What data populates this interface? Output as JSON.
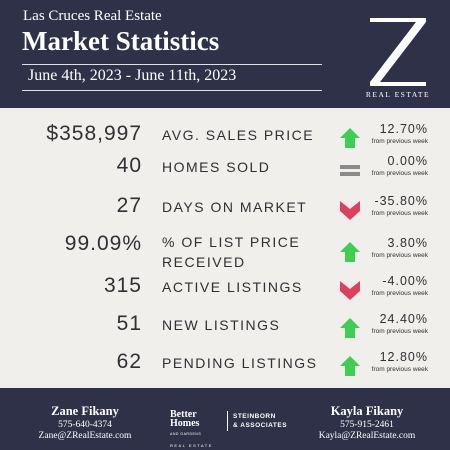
{
  "header": {
    "subtitle": "Las Cruces Real Estate",
    "title": "Market Statistics",
    "date_range": "June 4th, 2023 - June 11th, 2023",
    "logo_letter": "Z",
    "logo_text": "REAL ESTATE"
  },
  "stats": [
    {
      "value": "$358,997",
      "label_line1": "AVG. SALES PRICE",
      "label_line2": "",
      "trend": "up",
      "change": "12.70%",
      "note": "from previous week"
    },
    {
      "value": "40",
      "label_line1": "HOMES SOLD",
      "label_line2": "",
      "trend": "flat",
      "change": "0.00%",
      "note": "from previous week"
    },
    {
      "value": "27",
      "label_line1": "DAYS ON MARKET",
      "label_line2": "",
      "trend": "down",
      "change": "-35.80%",
      "note": "from previous week"
    },
    {
      "value": "99.09%",
      "label_line1": "% OF LIST PRICE",
      "label_line2": "RECEIVED",
      "trend": "up",
      "change": "3.80%",
      "note": "from previous week"
    },
    {
      "value": "315",
      "label_line1": "ACTIVE LISTINGS",
      "label_line2": "",
      "trend": "down",
      "change": "-4.00%",
      "note": "from previous week"
    },
    {
      "value": "51",
      "label_line1": "NEW LISTINGS",
      "label_line2": "",
      "trend": "up",
      "change": "24.40%",
      "note": "from previous week"
    },
    {
      "value": "62",
      "label_line1": "PENDING LISTINGS",
      "label_line2": "",
      "trend": "up",
      "change": "12.80%",
      "note": "from previous week"
    }
  ],
  "trend_colors": {
    "up": "#3ecf52",
    "down": "#e0405f",
    "flat": "#8a8a8a"
  },
  "footer": {
    "agent_left": {
      "name": "Zane Fikany",
      "phone": "575-640-4374",
      "email": "Zane@ZRealEstate.com"
    },
    "agent_right": {
      "name": "Kayla Fikany",
      "phone": "575-915-2461",
      "email": "Kayla@ZRealEstate.com"
    },
    "brand_line1": "Better",
    "brand_line2": "Homes",
    "brand_sub": "AND GARDENS",
    "brand_re": "REAL ESTATE",
    "brokerage_line1": "STEINBORN",
    "brokerage_line2": "& ASSOCIATES"
  }
}
